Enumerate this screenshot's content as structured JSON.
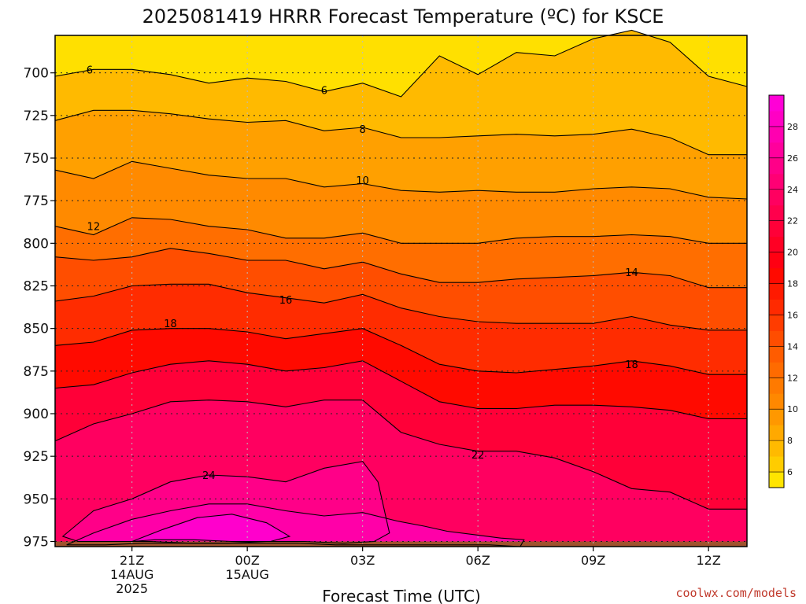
{
  "chart_data": {
    "type": "heatmap",
    "title": "2025081419 HRRR Forecast Temperature (ºC) for KSCE",
    "xlabel": "Forecast Time (UTC)",
    "credit": "coolwx.com/models",
    "pressure_ticks": [
      "700",
      "725",
      "750",
      "775",
      "800",
      "825",
      "850",
      "875",
      "900",
      "925",
      "950",
      "975"
    ],
    "pressure_values": [
      700,
      725,
      750,
      775,
      800,
      825,
      850,
      875,
      900,
      925,
      950,
      975
    ],
    "ylim": [
      978,
      678
    ],
    "xlim": [
      19,
      37
    ],
    "time_ticks": [
      {
        "h": 21,
        "label": "21Z",
        "sub1": "14AUG",
        "sub2": "2025"
      },
      {
        "h": 24,
        "label": "00Z",
        "sub1": "15AUG",
        "sub2": ""
      },
      {
        "h": 27,
        "label": "03Z",
        "sub1": "",
        "sub2": ""
      },
      {
        "h": 30,
        "label": "06Z",
        "sub1": "",
        "sub2": ""
      },
      {
        "h": 33,
        "label": "09Z",
        "sub1": "",
        "sub2": ""
      },
      {
        "h": 36,
        "label": "12Z",
        "sub1": "",
        "sub2": ""
      }
    ],
    "x": [
      19,
      20,
      21,
      22,
      23,
      24,
      25,
      26,
      27,
      28,
      29,
      30,
      31,
      32,
      33,
      34,
      35,
      36,
      37
    ],
    "isotherms": [
      {
        "level": 6,
        "p": [
          702,
          698,
          698,
          701,
          706,
          703,
          705,
          711,
          706,
          714,
          690,
          701,
          688,
          690,
          680,
          675,
          682,
          702,
          708
        ]
      },
      {
        "level": 8,
        "p": [
          728,
          722,
          722,
          724,
          727,
          729,
          728,
          734,
          732,
          738,
          738,
          737,
          736,
          737,
          736,
          733,
          738,
          748,
          748
        ]
      },
      {
        "level": 10,
        "p": [
          757,
          762,
          752,
          756,
          760,
          762,
          762,
          767,
          765,
          769,
          770,
          769,
          770,
          770,
          768,
          767,
          768,
          773,
          774
        ]
      },
      {
        "level": 12,
        "p": [
          790,
          795,
          785,
          786,
          790,
          792,
          797,
          797,
          794,
          800,
          800,
          800,
          797,
          796,
          796,
          795,
          796,
          800,
          800
        ]
      },
      {
        "level": 14,
        "p": [
          808,
          810,
          808,
          803,
          806,
          810,
          810,
          815,
          811,
          818,
          823,
          823,
          821,
          820,
          819,
          817,
          819,
          826,
          826
        ]
      },
      {
        "level": 16,
        "p": [
          834,
          831,
          825,
          824,
          824,
          829,
          832,
          835,
          830,
          838,
          843,
          846,
          847,
          847,
          847,
          843,
          848,
          851,
          851
        ]
      },
      {
        "level": 18,
        "p": [
          860,
          858,
          851,
          850,
          850,
          852,
          856,
          853,
          850,
          860,
          871,
          875,
          876,
          874,
          872,
          869,
          872,
          877,
          877
        ]
      },
      {
        "level": 20,
        "p": [
          885,
          883,
          876,
          871,
          869,
          871,
          875,
          873,
          869,
          881,
          893,
          897,
          897,
          895,
          895,
          896,
          898,
          903,
          903
        ]
      },
      {
        "level": 22,
        "p": [
          916,
          906,
          900,
          893,
          892,
          893,
          896,
          892,
          892,
          911,
          918,
          922,
          922,
          926,
          934,
          944,
          946,
          956,
          956
        ]
      }
    ],
    "closed_contours": [
      {
        "level": 24,
        "t": [
          19.2,
          20,
          21,
          22,
          23,
          24,
          25,
          26,
          27,
          27.4,
          27.7,
          27.3,
          26.5,
          25.5,
          24.5,
          23.5,
          22.5,
          21.5,
          20.5,
          19.6,
          19.2
        ],
        "p": [
          972,
          957,
          950,
          940,
          936,
          937,
          940,
          932,
          928,
          940,
          970,
          975,
          976,
          975,
          975,
          976,
          976,
          975,
          975,
          975,
          972
        ]
      },
      {
        "level": 26,
        "t": [
          19.3,
          20,
          21,
          22,
          23,
          24,
          25,
          26,
          27,
          27.9,
          28.6,
          29.2,
          29.9,
          30.6,
          31.2,
          31.1,
          30.3,
          29.3,
          28.3,
          27.3,
          26.3,
          25.3,
          24.3,
          23.3,
          22.3,
          21.3,
          20.3,
          19.3
        ],
        "p": [
          977,
          970,
          962,
          957,
          953,
          953,
          957,
          960,
          958,
          963,
          966,
          969,
          971,
          973,
          974,
          978,
          977,
          977,
          977,
          977,
          977,
          976,
          976,
          976,
          976,
          976,
          977,
          977
        ]
      },
      {
        "level": 28,
        "t": [
          21.0,
          21.8,
          22.7,
          23.6,
          24.5,
          25.1,
          24.6,
          23.6,
          22.6,
          21.6,
          21.0
        ],
        "p": [
          975,
          968,
          961,
          959,
          964,
          972,
          975,
          975,
          974,
          974,
          975
        ]
      }
    ],
    "contour_labels": [
      {
        "text": "6",
        "h": 19.9,
        "p": 698
      },
      {
        "text": "6",
        "h": 26.0,
        "p": 710
      },
      {
        "text": "8",
        "h": 27.0,
        "p": 733
      },
      {
        "text": "10",
        "h": 27.0,
        "p": 763
      },
      {
        "text": "12",
        "h": 20.0,
        "p": 790
      },
      {
        "text": "14",
        "h": 34.0,
        "p": 817
      },
      {
        "text": "16",
        "h": 25.0,
        "p": 833
      },
      {
        "text": "18",
        "h": 22.0,
        "p": 847
      },
      {
        "text": "18",
        "h": 34.0,
        "p": 871
      },
      {
        "text": "24",
        "h": 23.0,
        "p": 936
      },
      {
        "text": "22",
        "h": 30.0,
        "p": 924
      }
    ],
    "ground_pressure": 975,
    "colorbar": {
      "ticks": [
        "6",
        "8",
        "10",
        "12",
        "14",
        "16",
        "18",
        "20",
        "22",
        "24",
        "26",
        "28"
      ],
      "bands": [
        {
          "level": 4,
          "color": "#FFE400"
        },
        {
          "level": 6,
          "color": "#FFCC00"
        },
        {
          "level": 7,
          "color": "#FFBA00"
        },
        {
          "level": 8,
          "color": "#FFA900"
        },
        {
          "level": 9,
          "color": "#FF9800"
        },
        {
          "level": 10,
          "color": "#FF8800"
        },
        {
          "level": 11,
          "color": "#FF7A00"
        },
        {
          "level": 12,
          "color": "#FF6B00"
        },
        {
          "level": 13,
          "color": "#FF5C00"
        },
        {
          "level": 14,
          "color": "#FF4D00"
        },
        {
          "level": 15,
          "color": "#FF3C00"
        },
        {
          "level": 16,
          "color": "#FF2A00"
        },
        {
          "level": 17,
          "color": "#FF1A00"
        },
        {
          "level": 18,
          "color": "#FF0A00"
        },
        {
          "level": 19,
          "color": "#FF0012"
        },
        {
          "level": 20,
          "color": "#FF0024"
        },
        {
          "level": 21,
          "color": "#FF0038"
        },
        {
          "level": 22,
          "color": "#FF004C"
        },
        {
          "level": 23,
          "color": "#FF0060"
        },
        {
          "level": 24,
          "color": "#FF0074"
        },
        {
          "level": 25,
          "color": "#FF0088"
        },
        {
          "level": 26,
          "color": "#FF009C"
        },
        {
          "level": 27,
          "color": "#FF00B0"
        },
        {
          "level": 28,
          "color": "#FF00C4"
        },
        {
          "level": 29,
          "color": "#FF00D6"
        }
      ]
    },
    "fills": [
      {
        "level": 7,
        "color": "#FFBA00"
      },
      {
        "level": 9,
        "color": "#FFA000"
      },
      {
        "level": 11,
        "color": "#FF8A00"
      },
      {
        "level": 13,
        "color": "#FF6E00"
      },
      {
        "level": 15,
        "color": "#FF4E00"
      },
      {
        "level": 17,
        "color": "#FF2C00"
      },
      {
        "level": 19,
        "color": "#FF0A00"
      },
      {
        "level": 21,
        "color": "#FF0038"
      },
      {
        "level": 23,
        "color": "#FF0060"
      }
    ],
    "top_fill": "#FFE000",
    "closed_fills": [
      {
        "level": 25,
        "color": "#FF0088"
      },
      {
        "level": 27,
        "color": "#FF00A8"
      },
      {
        "level": 29,
        "color": "#FF00CC"
      }
    ],
    "ground_color": "#A0522D"
  }
}
